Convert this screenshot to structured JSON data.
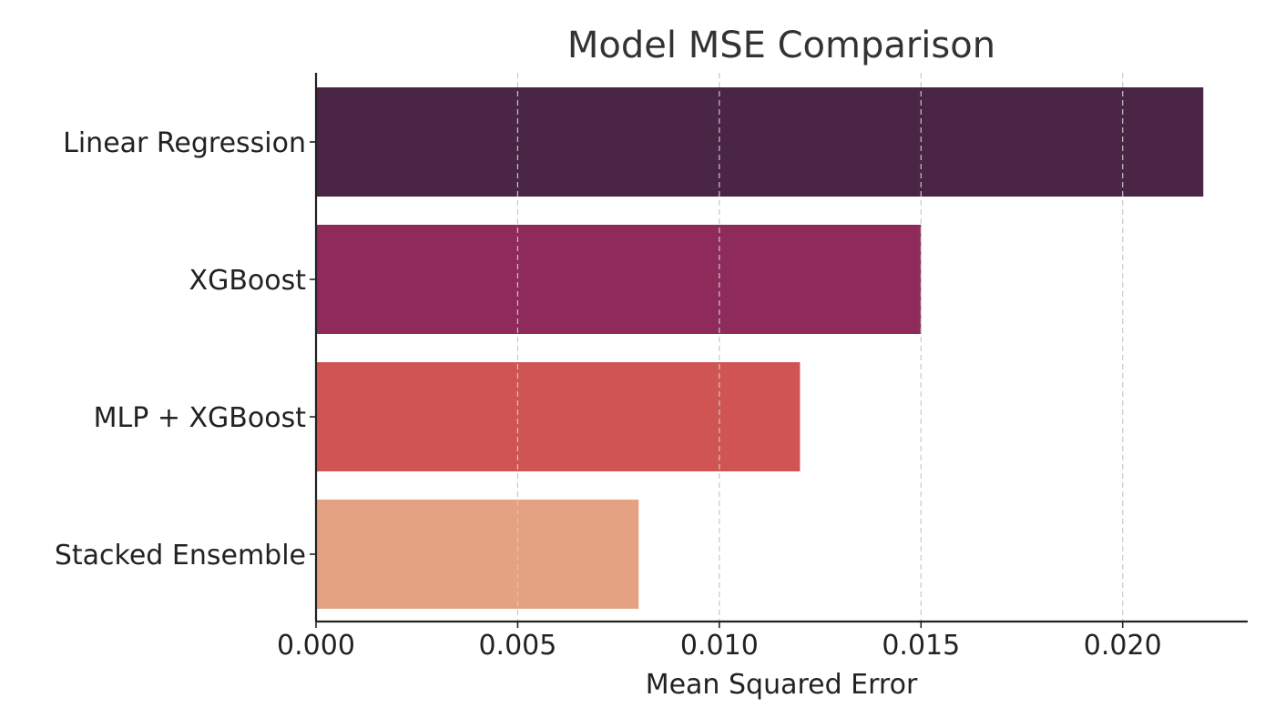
{
  "chart_data": {
    "type": "bar",
    "orientation": "horizontal",
    "title": "Model MSE Comparison",
    "xlabel": "Mean Squared Error",
    "ylabel": "",
    "categories": [
      "Linear Regression",
      "XGBoost",
      "MLP + XGBoost",
      "Stacked Ensemble"
    ],
    "values": [
      0.022,
      0.015,
      0.012,
      0.008
    ],
    "colors": [
      "#4a2545",
      "#8f2b5a",
      "#d15455",
      "#e4a283"
    ],
    "xlim": [
      0,
      0.0231
    ],
    "xticks": [
      0.0,
      0.005,
      0.01,
      0.015,
      0.02
    ],
    "xtick_labels": [
      "0.000",
      "0.005",
      "0.010",
      "0.015",
      "0.020"
    ],
    "grid": "x, dashed",
    "legend": "none"
  }
}
